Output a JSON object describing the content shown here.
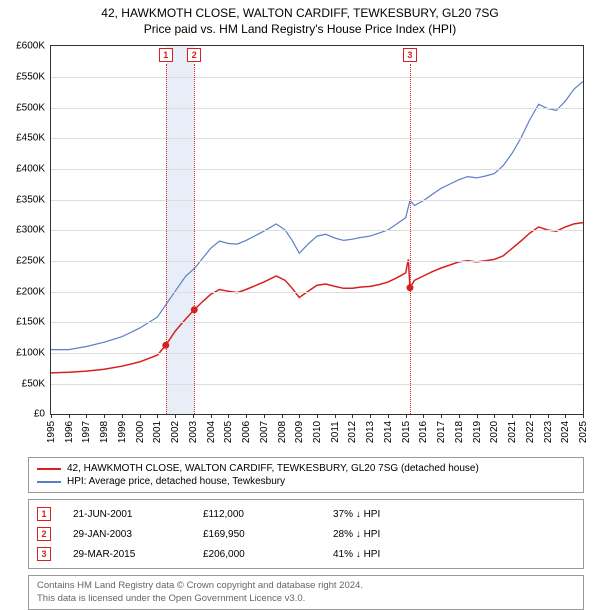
{
  "title_line1": "42, HAWKMOTH CLOSE, WALTON CARDIFF, TEWKESBURY, GL20 7SG",
  "title_line2": "Price paid vs. HM Land Registry's House Price Index (HPI)",
  "chart": {
    "type": "line",
    "background_color": "#ffffff",
    "grid_color": "#dddddd",
    "axis_color": "#333333",
    "x_years": [
      1995,
      1996,
      1997,
      1998,
      1999,
      2000,
      2001,
      2002,
      2003,
      2004,
      2005,
      2006,
      2007,
      2008,
      2009,
      2010,
      2011,
      2012,
      2013,
      2014,
      2015,
      2016,
      2017,
      2018,
      2019,
      2020,
      2021,
      2022,
      2023,
      2024,
      2025
    ],
    "ylim": [
      0,
      600000
    ],
    "ytick_step": 50000,
    "y_labels": [
      "£0",
      "£50K",
      "£100K",
      "£150K",
      "£200K",
      "£250K",
      "£300K",
      "£350K",
      "£400K",
      "£450K",
      "£500K",
      "£550K",
      "£600K"
    ],
    "highlight_band": {
      "from_year": 2001.47,
      "to_year": 2003.08,
      "color": "#b4c8e6",
      "opacity": 0.3
    },
    "markers": [
      {
        "id": "1",
        "year": 2001.47,
        "value": 112000,
        "color": "#d82020"
      },
      {
        "id": "2",
        "year": 2003.08,
        "value": 169950,
        "color": "#d82020"
      },
      {
        "id": "3",
        "year": 2015.24,
        "value": 206000,
        "color": "#d82020"
      }
    ],
    "series_red": {
      "color": "#d82020",
      "width": 1.5,
      "label": "42, HAWKMOTH CLOSE, WALTON CARDIFF, TEWKESBURY, GL20 7SG (detached house)",
      "points": [
        [
          1995.0,
          67000
        ],
        [
          1996.0,
          68000
        ],
        [
          1997.0,
          70000
        ],
        [
          1998.0,
          73000
        ],
        [
          1999.0,
          78000
        ],
        [
          2000.0,
          85000
        ],
        [
          2001.0,
          96000
        ],
        [
          2001.47,
          112000
        ],
        [
          2002.0,
          135000
        ],
        [
          2002.6,
          155000
        ],
        [
          2003.08,
          169950
        ],
        [
          2003.5,
          182000
        ],
        [
          2004.0,
          195000
        ],
        [
          2004.5,
          203000
        ],
        [
          2005.0,
          200000
        ],
        [
          2005.5,
          198000
        ],
        [
          2006.0,
          203000
        ],
        [
          2007.0,
          215000
        ],
        [
          2007.7,
          225000
        ],
        [
          2008.2,
          218000
        ],
        [
          2008.6,
          205000
        ],
        [
          2009.0,
          190000
        ],
        [
          2009.5,
          200000
        ],
        [
          2010.0,
          210000
        ],
        [
          2010.5,
          212000
        ],
        [
          2011.0,
          208000
        ],
        [
          2011.5,
          205000
        ],
        [
          2012.0,
          205000
        ],
        [
          2012.5,
          207000
        ],
        [
          2013.0,
          208000
        ],
        [
          2013.5,
          211000
        ],
        [
          2014.0,
          215000
        ],
        [
          2014.5,
          222000
        ],
        [
          2015.0,
          230000
        ],
        [
          2015.15,
          252000
        ],
        [
          2015.24,
          206000
        ],
        [
          2015.5,
          218000
        ],
        [
          2016.0,
          225000
        ],
        [
          2016.5,
          232000
        ],
        [
          2017.0,
          238000
        ],
        [
          2017.5,
          243000
        ],
        [
          2018.0,
          248000
        ],
        [
          2018.5,
          250000
        ],
        [
          2019.0,
          248000
        ],
        [
          2019.5,
          250000
        ],
        [
          2020.0,
          252000
        ],
        [
          2020.5,
          258000
        ],
        [
          2021.0,
          270000
        ],
        [
          2021.5,
          282000
        ],
        [
          2022.0,
          295000
        ],
        [
          2022.5,
          305000
        ],
        [
          2023.0,
          300000
        ],
        [
          2023.5,
          298000
        ],
        [
          2024.0,
          305000
        ],
        [
          2024.5,
          310000
        ],
        [
          2025.0,
          312000
        ]
      ]
    },
    "series_blue": {
      "color": "#5b7fc7",
      "width": 1.2,
      "label": "HPI: Average price, detached house, Tewkesbury",
      "points": [
        [
          1995.0,
          105000
        ],
        [
          1996.0,
          105000
        ],
        [
          1997.0,
          110000
        ],
        [
          1998.0,
          117000
        ],
        [
          1999.0,
          126000
        ],
        [
          2000.0,
          140000
        ],
        [
          2001.0,
          158000
        ],
        [
          2001.47,
          178000
        ],
        [
          2002.0,
          200000
        ],
        [
          2002.6,
          225000
        ],
        [
          2003.08,
          237000
        ],
        [
          2003.5,
          252000
        ],
        [
          2004.0,
          270000
        ],
        [
          2004.5,
          282000
        ],
        [
          2005.0,
          278000
        ],
        [
          2005.5,
          277000
        ],
        [
          2006.0,
          283000
        ],
        [
          2007.0,
          298000
        ],
        [
          2007.7,
          310000
        ],
        [
          2008.2,
          300000
        ],
        [
          2008.6,
          283000
        ],
        [
          2009.0,
          262000
        ],
        [
          2009.5,
          277000
        ],
        [
          2010.0,
          290000
        ],
        [
          2010.5,
          293000
        ],
        [
          2011.0,
          287000
        ],
        [
          2011.5,
          283000
        ],
        [
          2012.0,
          285000
        ],
        [
          2012.5,
          288000
        ],
        [
          2013.0,
          290000
        ],
        [
          2013.5,
          295000
        ],
        [
          2014.0,
          300000
        ],
        [
          2014.5,
          310000
        ],
        [
          2015.0,
          320000
        ],
        [
          2015.24,
          348000
        ],
        [
          2015.5,
          340000
        ],
        [
          2016.0,
          348000
        ],
        [
          2016.5,
          358000
        ],
        [
          2017.0,
          368000
        ],
        [
          2017.5,
          375000
        ],
        [
          2018.0,
          382000
        ],
        [
          2018.5,
          387000
        ],
        [
          2019.0,
          385000
        ],
        [
          2019.5,
          388000
        ],
        [
          2020.0,
          392000
        ],
        [
          2020.5,
          405000
        ],
        [
          2021.0,
          425000
        ],
        [
          2021.5,
          450000
        ],
        [
          2022.0,
          480000
        ],
        [
          2022.5,
          505000
        ],
        [
          2023.0,
          498000
        ],
        [
          2023.5,
          495000
        ],
        [
          2024.0,
          510000
        ],
        [
          2024.5,
          530000
        ],
        [
          2025.0,
          542000
        ]
      ]
    }
  },
  "legend": {
    "red": {
      "color": "#d82020"
    },
    "blue": {
      "color": "#5b7fc7"
    }
  },
  "sales": [
    {
      "id": "1",
      "date": "21-JUN-2001",
      "price": "£112,000",
      "diff": "37% ↓ HPI",
      "color": "#d82020"
    },
    {
      "id": "2",
      "date": "29-JAN-2003",
      "price": "£169,950",
      "diff": "28% ↓ HPI",
      "color": "#d82020"
    },
    {
      "id": "3",
      "date": "29-MAR-2015",
      "price": "£206,000",
      "diff": "41% ↓ HPI",
      "color": "#d82020"
    }
  ],
  "footer_line1": "Contains HM Land Registry data © Crown copyright and database right 2024.",
  "footer_line2": "This data is licensed under the Open Government Licence v3.0."
}
